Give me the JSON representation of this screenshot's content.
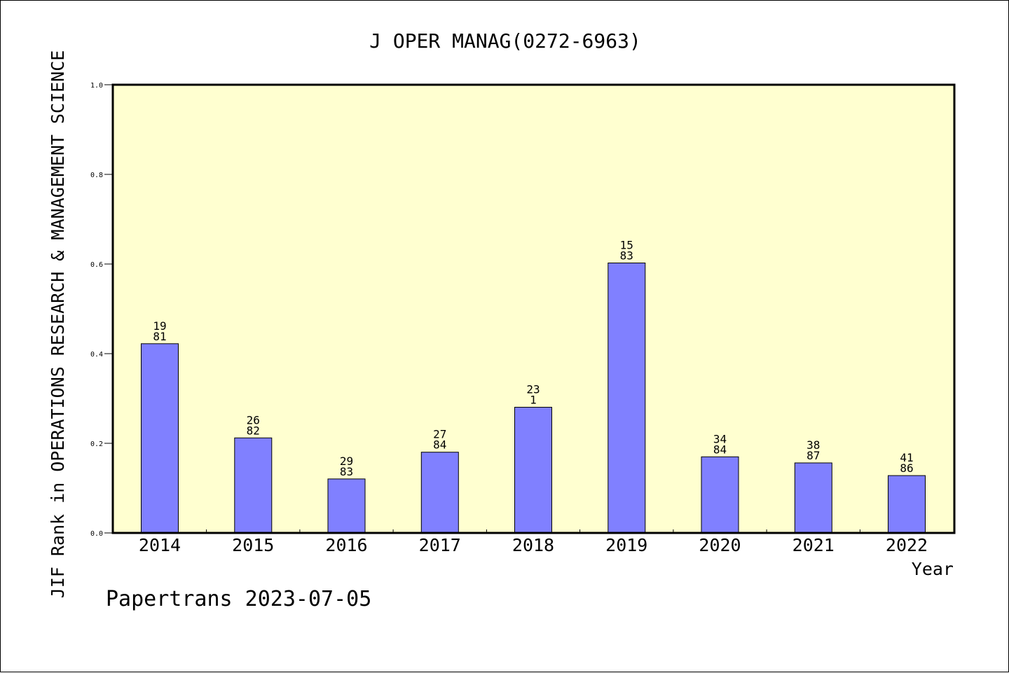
{
  "chart_data": {
    "type": "bar",
    "title": "J OPER MANAG(0272-6963)",
    "ylabel": "JIF Rank in OPERATIONS RESEARCH & MANAGEMENT SCIENCE",
    "xlabel": "Year",
    "footer": "Papertrans 2023-07-05",
    "categories": [
      "2014",
      "2015",
      "2016",
      "2017",
      "2018",
      "2019",
      "2020",
      "2021",
      "2022"
    ],
    "values": [
      0.4222,
      0.2121,
      0.1205,
      0.1801,
      0.2805,
      0.6024,
      0.1699,
      0.1563,
      0.1279
    ],
    "bar_labels": [
      [
        "19",
        "81"
      ],
      [
        "26",
        "82"
      ],
      [
        "29",
        "83"
      ],
      [
        "27",
        "84"
      ],
      [
        "23",
        "1"
      ],
      [
        "15",
        "83"
      ],
      [
        "34",
        "84"
      ],
      [
        "38",
        "87"
      ],
      [
        "41",
        "86"
      ]
    ],
    "ylim": [
      0,
      1.0
    ],
    "yticks": [
      "0.0",
      "0.2",
      "0.4",
      "0.6",
      "0.8",
      "1.0"
    ],
    "grid": false,
    "colors": {
      "plot_bg": "#ffffd0",
      "bar": "#8080ff",
      "bar_edge": "#000000"
    }
  }
}
